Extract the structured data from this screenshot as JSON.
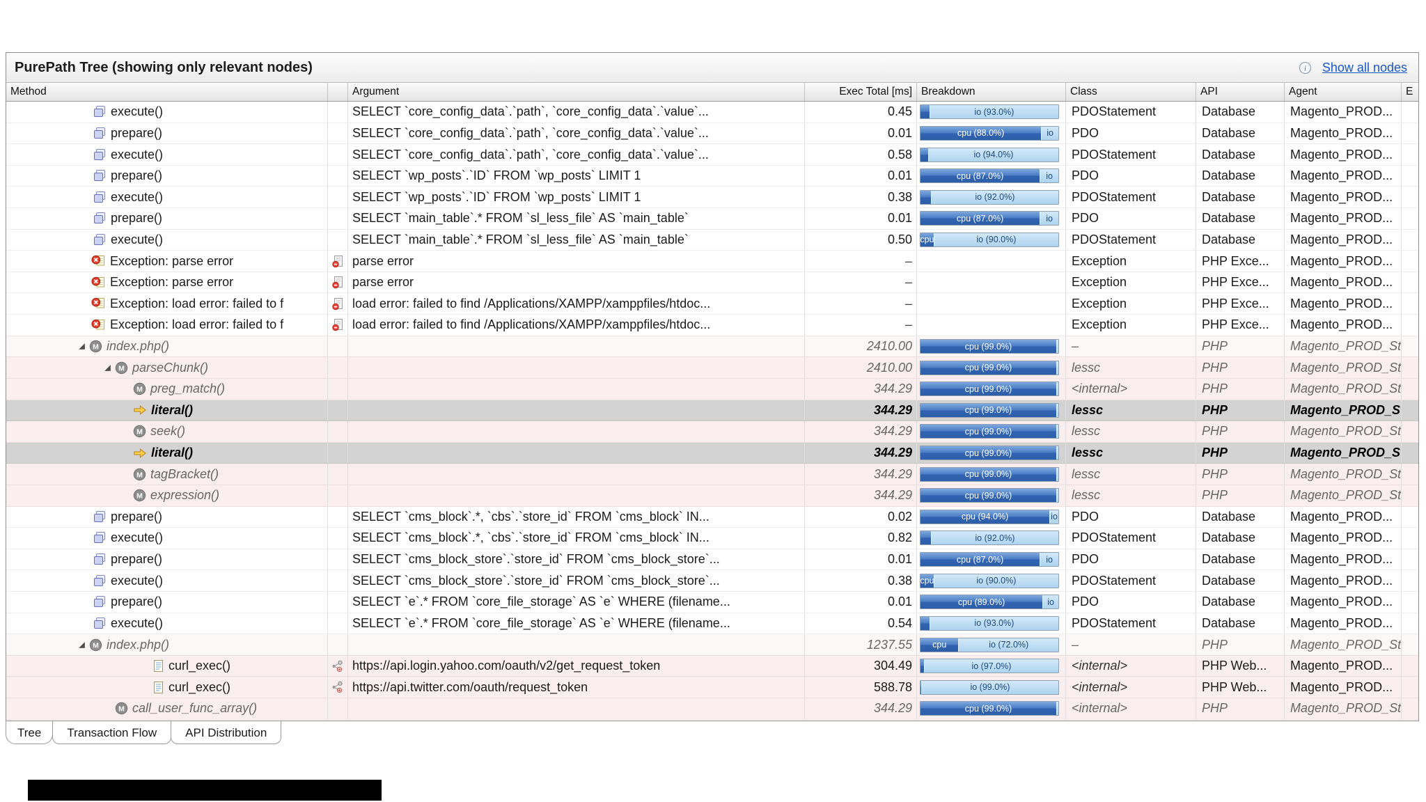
{
  "panel": {
    "title": "PurePath Tree (showing only relevant nodes)",
    "show_all_nodes_label": "Show all nodes"
  },
  "columns": [
    "Method",
    "",
    "Argument",
    "Exec Total [ms]",
    "Breakdown",
    "Class",
    "API",
    "Agent",
    "E"
  ],
  "tabs": [
    {
      "label": "Tree",
      "active": true
    },
    {
      "label": "Transaction Flow",
      "active": false
    },
    {
      "label": "API Distribution",
      "active": false
    }
  ],
  "colors": {
    "cpu_bar": "#3263b2",
    "io_bar": "#aed4ef",
    "selected_row": "#d3d3d3",
    "php_row": "#fbeeee",
    "link": "#1a57c8"
  },
  "rows": [
    {
      "kind": "db",
      "icon": "statement-icon",
      "indent": 121,
      "expand": false,
      "method": "execute()",
      "arg_icon": "",
      "argument": "SELECT `core_config_data`.`path`, `core_config_data`.`value`...",
      "exec": "0.45",
      "bd": [
        [
          "cpu",
          7,
          ""
        ],
        [
          "io",
          93,
          "io (93.0%)"
        ]
      ],
      "cls": "PDOStatement",
      "api": "Database",
      "agent": "Magento_PROD..."
    },
    {
      "kind": "db",
      "icon": "statement-icon",
      "indent": 121,
      "expand": false,
      "method": "prepare()",
      "arg_icon": "",
      "argument": "SELECT `core_config_data`.`path`, `core_config_data`.`value`...",
      "exec": "0.01",
      "bd": [
        [
          "cpu",
          88,
          "cpu (88.0%)"
        ],
        [
          "io",
          12,
          "io"
        ]
      ],
      "cls": "PDO",
      "api": "Database",
      "agent": "Magento_PROD..."
    },
    {
      "kind": "db",
      "icon": "statement-icon",
      "indent": 121,
      "expand": false,
      "method": "execute()",
      "arg_icon": "",
      "argument": "SELECT `core_config_data`.`path`, `core_config_data`.`value`...",
      "exec": "0.58",
      "bd": [
        [
          "cpu",
          6,
          ""
        ],
        [
          "io",
          94,
          "io (94.0%)"
        ]
      ],
      "cls": "PDOStatement",
      "api": "Database",
      "agent": "Magento_PROD..."
    },
    {
      "kind": "db",
      "icon": "statement-icon",
      "indent": 121,
      "expand": false,
      "method": "prepare()",
      "arg_icon": "",
      "argument": "SELECT `wp_posts`.`ID` FROM `wp_posts` LIMIT 1",
      "exec": "0.01",
      "bd": [
        [
          "cpu",
          87,
          "cpu (87.0%)"
        ],
        [
          "io",
          13,
          "io"
        ]
      ],
      "cls": "PDO",
      "api": "Database",
      "agent": "Magento_PROD..."
    },
    {
      "kind": "db",
      "icon": "statement-icon",
      "indent": 121,
      "expand": false,
      "method": "execute()",
      "arg_icon": "",
      "argument": "SELECT `wp_posts`.`ID` FROM `wp_posts` LIMIT 1",
      "exec": "0.38",
      "bd": [
        [
          "cpu",
          8,
          ""
        ],
        [
          "io",
          92,
          "io (92.0%)"
        ]
      ],
      "cls": "PDOStatement",
      "api": "Database",
      "agent": "Magento_PROD..."
    },
    {
      "kind": "db",
      "icon": "statement-icon",
      "indent": 121,
      "expand": false,
      "method": "prepare()",
      "arg_icon": "",
      "argument": "SELECT `main_table`.* FROM `sl_less_file` AS `main_table`",
      "exec": "0.01",
      "bd": [
        [
          "cpu",
          87,
          "cpu (87.0%)"
        ],
        [
          "io",
          13,
          "io"
        ]
      ],
      "cls": "PDO",
      "api": "Database",
      "agent": "Magento_PROD..."
    },
    {
      "kind": "db",
      "icon": "statement-icon",
      "indent": 121,
      "expand": false,
      "method": "execute()",
      "arg_icon": "",
      "argument": "SELECT `main_table`.* FROM `sl_less_file` AS `main_table`",
      "exec": "0.50",
      "bd": [
        [
          "cpu",
          10,
          "cpu"
        ],
        [
          "io",
          90,
          "io (90.0%)"
        ]
      ],
      "cls": "PDOStatement",
      "api": "Database",
      "agent": "Magento_PROD..."
    },
    {
      "kind": "exc",
      "icon": "exception-icon",
      "indent": 118,
      "expand": false,
      "method": "Exception: parse error",
      "arg_icon": "error-file-icon",
      "argument": "parse error",
      "exec": "–",
      "bd": [],
      "cls": "Exception",
      "api": "PHP Exce...",
      "agent": "Magento_PROD..."
    },
    {
      "kind": "exc",
      "icon": "exception-icon",
      "indent": 118,
      "expand": false,
      "method": "Exception: parse error",
      "arg_icon": "error-file-icon",
      "argument": "parse error",
      "exec": "–",
      "bd": [],
      "cls": "Exception",
      "api": "PHP Exce...",
      "agent": "Magento_PROD..."
    },
    {
      "kind": "exc",
      "icon": "exception-icon",
      "indent": 118,
      "expand": false,
      "method": "Exception: load error: failed to f",
      "arg_icon": "error-file-icon",
      "argument": "load error: failed to find /Applications/XAMPP/xamppfiles/htdoc...",
      "exec": "–",
      "bd": [],
      "cls": "Exception",
      "api": "PHP Exce...",
      "agent": "Magento_PROD..."
    },
    {
      "kind": "exc",
      "icon": "exception-icon",
      "indent": 118,
      "expand": false,
      "method": "Exception: load error: failed to f",
      "arg_icon": "error-file-icon",
      "argument": "load error: failed to find /Applications/XAMPP/xamppfiles/htdoc...",
      "exec": "–",
      "bd": [],
      "cls": "Exception",
      "api": "PHP Exce...",
      "agent": "Magento_PROD..."
    },
    {
      "kind": "phptop",
      "icon": "php-method-icon",
      "indent": 98,
      "expand": true,
      "method": "index.php()",
      "arg_icon": "",
      "argument": "",
      "exec": "2410.00",
      "bd": [
        [
          "cpu",
          99,
          "cpu (99.0%)"
        ],
        [
          "io",
          1,
          ""
        ]
      ],
      "cls": "–",
      "api": "PHP",
      "agent": "Magento_PROD_Sta"
    },
    {
      "kind": "php",
      "icon": "php-method-icon",
      "indent": 135,
      "expand": true,
      "method": "parseChunk()",
      "arg_icon": "",
      "argument": "",
      "exec": "2410.00",
      "bd": [
        [
          "cpu",
          99,
          "cpu (99.0%)"
        ],
        [
          "io",
          1,
          ""
        ]
      ],
      "cls": "lessc",
      "api": "PHP",
      "agent": "Magento_PROD_Sta"
    },
    {
      "kind": "php",
      "icon": "php-method-icon",
      "indent": 178,
      "expand": false,
      "method": "preg_match()",
      "arg_icon": "",
      "argument": "",
      "exec": "344.29",
      "bd": [
        [
          "cpu",
          99,
          "cpu (99.0%)"
        ],
        [
          "io",
          1,
          ""
        ]
      ],
      "cls": "<internal>",
      "api": "PHP",
      "agent": "Magento_PROD_Sta"
    },
    {
      "kind": "phpsel",
      "icon": "literal-arrow-icon",
      "indent": 178,
      "expand": false,
      "method": "literal()",
      "arg_icon": "",
      "argument": "",
      "exec": "344.29",
      "bd": [
        [
          "cpu",
          99,
          "cpu (99.0%)"
        ],
        [
          "io",
          1,
          ""
        ]
      ],
      "cls": "lessc",
      "api": "PHP",
      "agent": "Magento_PROD_Sta"
    },
    {
      "kind": "php",
      "icon": "php-method-icon",
      "indent": 178,
      "expand": false,
      "method": "seek()",
      "arg_icon": "",
      "argument": "",
      "exec": "344.29",
      "bd": [
        [
          "cpu",
          99,
          "cpu (99.0%)"
        ],
        [
          "io",
          1,
          ""
        ]
      ],
      "cls": "lessc",
      "api": "PHP",
      "agent": "Magento_PROD_Sta"
    },
    {
      "kind": "phpsel",
      "icon": "literal-arrow-icon",
      "indent": 178,
      "expand": false,
      "method": "literal()",
      "arg_icon": "",
      "argument": "",
      "exec": "344.29",
      "bd": [
        [
          "cpu",
          99,
          "cpu (99.0%)"
        ],
        [
          "io",
          1,
          ""
        ]
      ],
      "cls": "lessc",
      "api": "PHP",
      "agent": "Magento_PROD_Sta"
    },
    {
      "kind": "php",
      "icon": "php-method-icon",
      "indent": 178,
      "expand": false,
      "method": "tagBracket()",
      "arg_icon": "",
      "argument": "",
      "exec": "344.29",
      "bd": [
        [
          "cpu",
          99,
          "cpu (99.0%)"
        ],
        [
          "io",
          1,
          ""
        ]
      ],
      "cls": "lessc",
      "api": "PHP",
      "agent": "Magento_PROD_Sta"
    },
    {
      "kind": "php",
      "icon": "php-method-icon",
      "indent": 178,
      "expand": false,
      "method": "expression()",
      "arg_icon": "",
      "argument": "",
      "exec": "344.29",
      "bd": [
        [
          "cpu",
          99,
          "cpu (99.0%)"
        ],
        [
          "io",
          1,
          ""
        ]
      ],
      "cls": "lessc",
      "api": "PHP",
      "agent": "Magento_PROD_Sta"
    },
    {
      "kind": "db",
      "icon": "statement-icon",
      "indent": 121,
      "expand": false,
      "method": "prepare()",
      "arg_icon": "",
      "argument": "SELECT `cms_block`.*, `cbs`.`store_id` FROM `cms_block`  IN...",
      "exec": "0.02",
      "bd": [
        [
          "cpu",
          94,
          "cpu (94.0%)"
        ],
        [
          "io",
          6,
          "io"
        ]
      ],
      "cls": "PDO",
      "api": "Database",
      "agent": "Magento_PROD..."
    },
    {
      "kind": "db",
      "icon": "statement-icon",
      "indent": 121,
      "expand": false,
      "method": "execute()",
      "arg_icon": "",
      "argument": "SELECT `cms_block`.*, `cbs`.`store_id` FROM `cms_block`  IN...",
      "exec": "0.82",
      "bd": [
        [
          "cpu",
          8,
          ""
        ],
        [
          "io",
          92,
          "io (92.0%)"
        ]
      ],
      "cls": "PDOStatement",
      "api": "Database",
      "agent": "Magento_PROD..."
    },
    {
      "kind": "db",
      "icon": "statement-icon",
      "indent": 121,
      "expand": false,
      "method": "prepare()",
      "arg_icon": "",
      "argument": "SELECT `cms_block_store`.`store_id` FROM `cms_block_store`...",
      "exec": "0.01",
      "bd": [
        [
          "cpu",
          87,
          "cpu (87.0%)"
        ],
        [
          "io",
          13,
          "io"
        ]
      ],
      "cls": "PDO",
      "api": "Database",
      "agent": "Magento_PROD..."
    },
    {
      "kind": "db",
      "icon": "statement-icon",
      "indent": 121,
      "expand": false,
      "method": "execute()",
      "arg_icon": "",
      "argument": "SELECT `cms_block_store`.`store_id` FROM `cms_block_store`...",
      "exec": "0.38",
      "bd": [
        [
          "cpu",
          10,
          "cpu"
        ],
        [
          "io",
          90,
          "io (90.0%)"
        ]
      ],
      "cls": "PDOStatement",
      "api": "Database",
      "agent": "Magento_PROD..."
    },
    {
      "kind": "db",
      "icon": "statement-icon",
      "indent": 121,
      "expand": false,
      "method": "prepare()",
      "arg_icon": "",
      "argument": "SELECT `e`.* FROM `core_file_storage` AS `e` WHERE (filename...",
      "exec": "0.01",
      "bd": [
        [
          "cpu",
          89,
          "cpu (89.0%)"
        ],
        [
          "io",
          11,
          "io"
        ]
      ],
      "cls": "PDO",
      "api": "Database",
      "agent": "Magento_PROD..."
    },
    {
      "kind": "db",
      "icon": "statement-icon",
      "indent": 121,
      "expand": false,
      "method": "execute()",
      "arg_icon": "",
      "argument": "SELECT `e`.* FROM `core_file_storage` AS `e` WHERE (filename...",
      "exec": "0.54",
      "bd": [
        [
          "cpu",
          7,
          ""
        ],
        [
          "io",
          93,
          "io (93.0%)"
        ]
      ],
      "cls": "PDOStatement",
      "api": "Database",
      "agent": "Magento_PROD..."
    },
    {
      "kind": "phptop",
      "icon": "php-method-icon",
      "indent": 98,
      "expand": true,
      "method": "index.php()",
      "arg_icon": "",
      "argument": "",
      "exec": "1237.55",
      "bd": [
        [
          "cpu",
          28,
          "cpu"
        ],
        [
          "io",
          72,
          "io (72.0%)"
        ]
      ],
      "cls": "–",
      "api": "PHP",
      "agent": "Magento_PROD_Sta"
    },
    {
      "kind": "curl",
      "icon": "document-icon",
      "indent": 206,
      "expand": false,
      "method": "curl_exec()",
      "arg_icon": "web-request-icon",
      "argument": "https://api.login.yahoo.com/oauth/v2/get_request_token",
      "exec": "304.49",
      "bd": [
        [
          "cpu",
          3,
          ""
        ],
        [
          "io",
          97,
          "io (97.0%)"
        ]
      ],
      "cls": "<internal>",
      "api": "PHP Web...",
      "agent": "Magento_PROD..."
    },
    {
      "kind": "curl",
      "icon": "document-icon",
      "indent": 206,
      "expand": false,
      "method": "curl_exec()",
      "arg_icon": "web-request-icon",
      "argument": "https://api.twitter.com/oauth/request_token",
      "exec": "588.78",
      "bd": [
        [
          "cpu",
          1,
          ""
        ],
        [
          "io",
          99,
          "io (99.0%)"
        ]
      ],
      "cls": "<internal>",
      "api": "PHP Web...",
      "agent": "Magento_PROD..."
    },
    {
      "kind": "php",
      "icon": "php-method-icon",
      "indent": 152,
      "expand": false,
      "method": "call_user_func_array()",
      "arg_icon": "",
      "argument": "",
      "exec": "344.29",
      "bd": [
        [
          "cpu",
          99,
          "cpu (99.0%)"
        ],
        [
          "io",
          1,
          ""
        ]
      ],
      "cls": "<internal>",
      "api": "PHP",
      "agent": "Magento_PROD_Sta"
    }
  ]
}
